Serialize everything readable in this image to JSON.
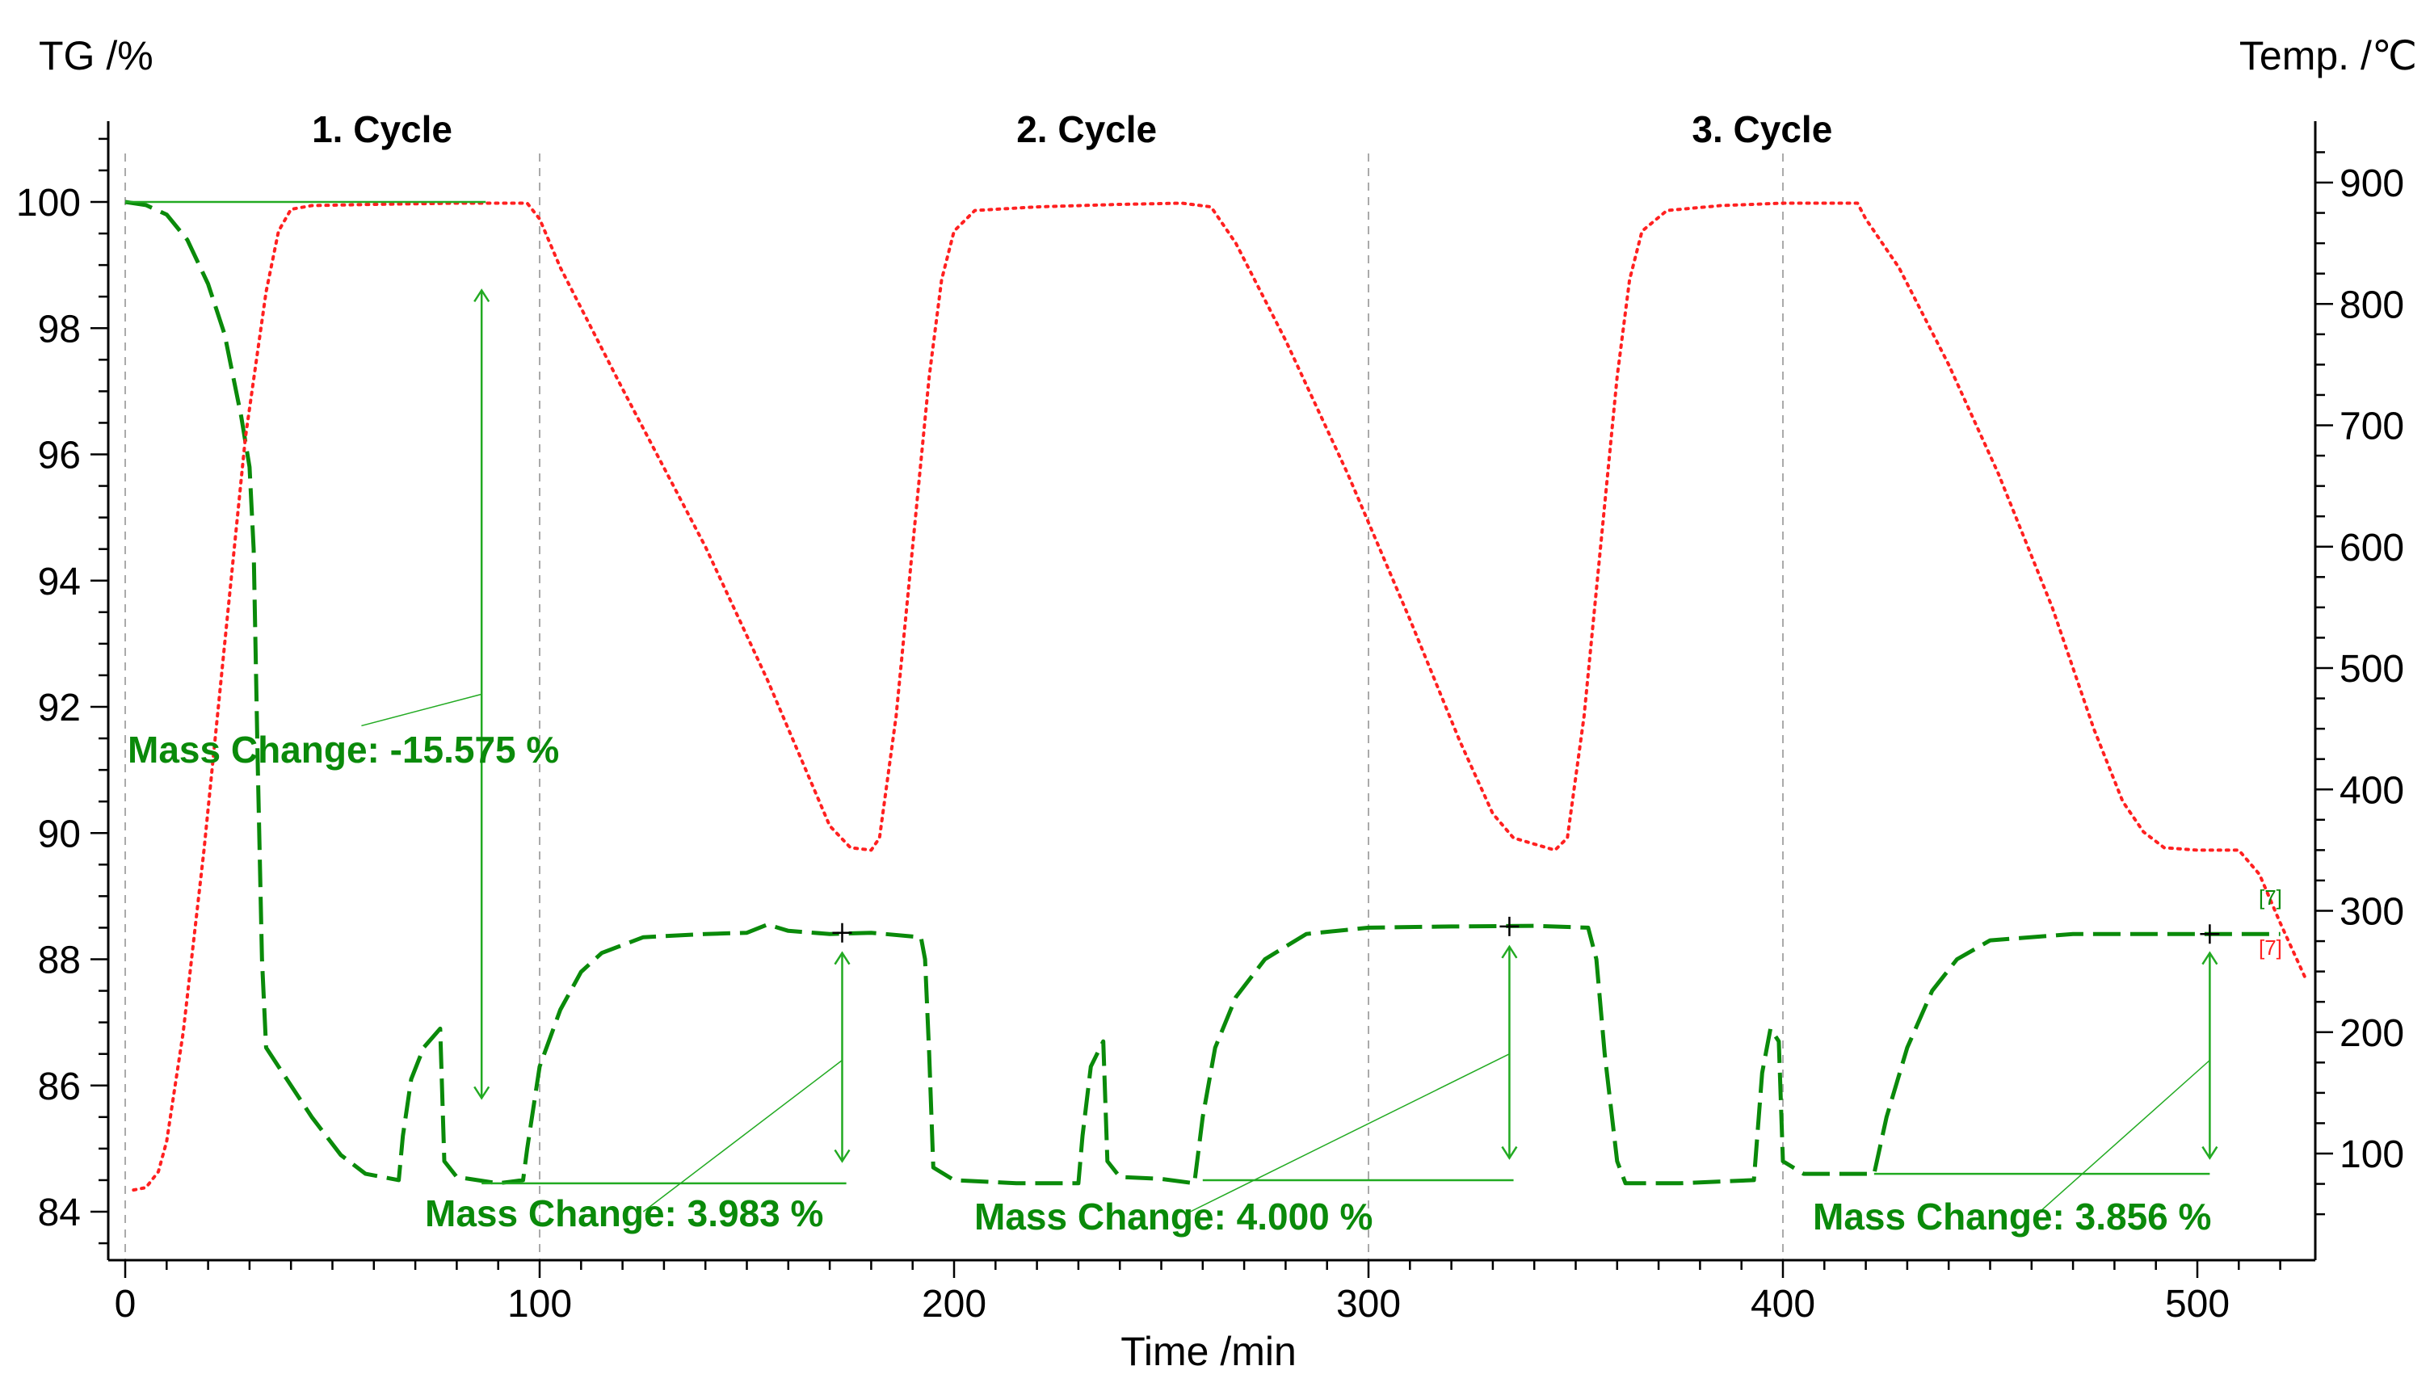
{
  "chart_data": {
    "type": "line",
    "xlabel": "Time /min",
    "ylabel_left": "TG /%",
    "ylabel_right": "Temp. /℃",
    "xlim": [
      -5,
      528
    ],
    "ylim_left": [
      83.2,
      101.2
    ],
    "ylim_right": [
      25,
      937
    ],
    "x_ticks": [
      0,
      100,
      200,
      300,
      400,
      500
    ],
    "y_left_ticks": [
      84,
      86,
      88,
      90,
      92,
      94,
      96,
      98,
      100
    ],
    "y_right_ticks": [
      100,
      200,
      300,
      400,
      500,
      600,
      700,
      800,
      900
    ],
    "cycle_dividers": [
      0,
      100,
      300,
      400
    ],
    "cycles": [
      {
        "label": "1. Cycle",
        "x": 62
      },
      {
        "label": "2. Cycle",
        "x": 232
      },
      {
        "label": "3. Cycle",
        "x": 395
      }
    ],
    "series": [
      {
        "name": "TG",
        "axis": "left",
        "color": "#0a8a0a",
        "style": "dashed",
        "points": [
          [
            0,
            100
          ],
          [
            5,
            99.95
          ],
          [
            10,
            99.8
          ],
          [
            15,
            99.4
          ],
          [
            20,
            98.7
          ],
          [
            24,
            97.9
          ],
          [
            28,
            96.6
          ],
          [
            30,
            95.8
          ],
          [
            31,
            94.5
          ],
          [
            32,
            91
          ],
          [
            33,
            88
          ],
          [
            34,
            86.6
          ],
          [
            38,
            86.2
          ],
          [
            45,
            85.5
          ],
          [
            52,
            84.9
          ],
          [
            58,
            84.6
          ],
          [
            66,
            84.5
          ],
          [
            67,
            85.2
          ],
          [
            69,
            86.1
          ],
          [
            72,
            86.6
          ],
          [
            76,
            86.9
          ],
          [
            77,
            84.8
          ],
          [
            80,
            84.55
          ],
          [
            90,
            84.45
          ],
          [
            96,
            84.5
          ],
          [
            97,
            85
          ],
          [
            100,
            86.3
          ],
          [
            105,
            87.2
          ],
          [
            110,
            87.8
          ],
          [
            115,
            88.1
          ],
          [
            125,
            88.35
          ],
          [
            140,
            88.4
          ],
          [
            150,
            88.42
          ],
          [
            155,
            88.55
          ],
          [
            160,
            88.45
          ],
          [
            170,
            88.4
          ],
          [
            180,
            88.42
          ],
          [
            192,
            88.35
          ],
          [
            193,
            88
          ],
          [
            194,
            86.5
          ],
          [
            195,
            84.7
          ],
          [
            200,
            84.5
          ],
          [
            215,
            84.45
          ],
          [
            230,
            84.45
          ],
          [
            231,
            85.2
          ],
          [
            233,
            86.3
          ],
          [
            236,
            86.7
          ],
          [
            237,
            84.8
          ],
          [
            240,
            84.55
          ],
          [
            250,
            84.52
          ],
          [
            258,
            84.45
          ],
          [
            260,
            85.5
          ],
          [
            263,
            86.6
          ],
          [
            268,
            87.4
          ],
          [
            275,
            88
          ],
          [
            285,
            88.4
          ],
          [
            300,
            88.5
          ],
          [
            320,
            88.52
          ],
          [
            340,
            88.53
          ],
          [
            353,
            88.5
          ],
          [
            355,
            88
          ],
          [
            357,
            86.5
          ],
          [
            360,
            84.8
          ],
          [
            362,
            84.45
          ],
          [
            375,
            84.45
          ],
          [
            393,
            84.5
          ],
          [
            395,
            86.2
          ],
          [
            397,
            86.9
          ],
          [
            399,
            86.7
          ],
          [
            400,
            84.8
          ],
          [
            405,
            84.6
          ],
          [
            422,
            84.6
          ],
          [
            425,
            85.5
          ],
          [
            430,
            86.6
          ],
          [
            436,
            87.5
          ],
          [
            442,
            88
          ],
          [
            450,
            88.3
          ],
          [
            470,
            88.4
          ],
          [
            490,
            88.4
          ],
          [
            505,
            88.4
          ],
          [
            520,
            88.4
          ]
        ]
      },
      {
        "name": "Temperature",
        "axis": "right",
        "color": "#ff2020",
        "style": "dotted",
        "points": [
          [
            2,
            70
          ],
          [
            5,
            72
          ],
          [
            8,
            85
          ],
          [
            10,
            110
          ],
          [
            14,
            200
          ],
          [
            19,
            350
          ],
          [
            24,
            520
          ],
          [
            29,
            690
          ],
          [
            34,
            810
          ],
          [
            37,
            860
          ],
          [
            40,
            878
          ],
          [
            45,
            881
          ],
          [
            60,
            882
          ],
          [
            80,
            883
          ],
          [
            97,
            883
          ],
          [
            100,
            870
          ],
          [
            105,
            830
          ],
          [
            120,
            730
          ],
          [
            140,
            600
          ],
          [
            155,
            490
          ],
          [
            165,
            410
          ],
          [
            170,
            370
          ],
          [
            175,
            352
          ],
          [
            180,
            350
          ],
          [
            182,
            360
          ],
          [
            186,
            460
          ],
          [
            190,
            600
          ],
          [
            194,
            740
          ],
          [
            197,
            820
          ],
          [
            200,
            860
          ],
          [
            205,
            877
          ],
          [
            220,
            880
          ],
          [
            240,
            882
          ],
          [
            255,
            883
          ],
          [
            262,
            880
          ],
          [
            268,
            850
          ],
          [
            280,
            770
          ],
          [
            295,
            660
          ],
          [
            310,
            540
          ],
          [
            322,
            440
          ],
          [
            330,
            380
          ],
          [
            335,
            360
          ],
          [
            345,
            350
          ],
          [
            348,
            360
          ],
          [
            352,
            460
          ],
          [
            356,
            600
          ],
          [
            360,
            740
          ],
          [
            363,
            820
          ],
          [
            366,
            860
          ],
          [
            372,
            877
          ],
          [
            385,
            881
          ],
          [
            400,
            883
          ],
          [
            418,
            883
          ],
          [
            420,
            870
          ],
          [
            428,
            830
          ],
          [
            440,
            750
          ],
          [
            452,
            660
          ],
          [
            465,
            550
          ],
          [
            475,
            450
          ],
          [
            482,
            390
          ],
          [
            487,
            365
          ],
          [
            492,
            352
          ],
          [
            500,
            350
          ],
          [
            510,
            350
          ],
          [
            515,
            330
          ],
          [
            520,
            290
          ],
          [
            526,
            245
          ]
        ]
      }
    ],
    "annotations": [
      {
        "label": "Mass Change: -15.575 %",
        "value": -15.575
      },
      {
        "label": "Mass Change: 3.983 %",
        "value": 3.983
      },
      {
        "label": "Mass Change: 4.000 %",
        "value": 4.0
      },
      {
        "label": "Mass Change: 3.856 %",
        "value": 3.856
      }
    ],
    "end_markers": [
      "[7]",
      "[7]"
    ]
  }
}
